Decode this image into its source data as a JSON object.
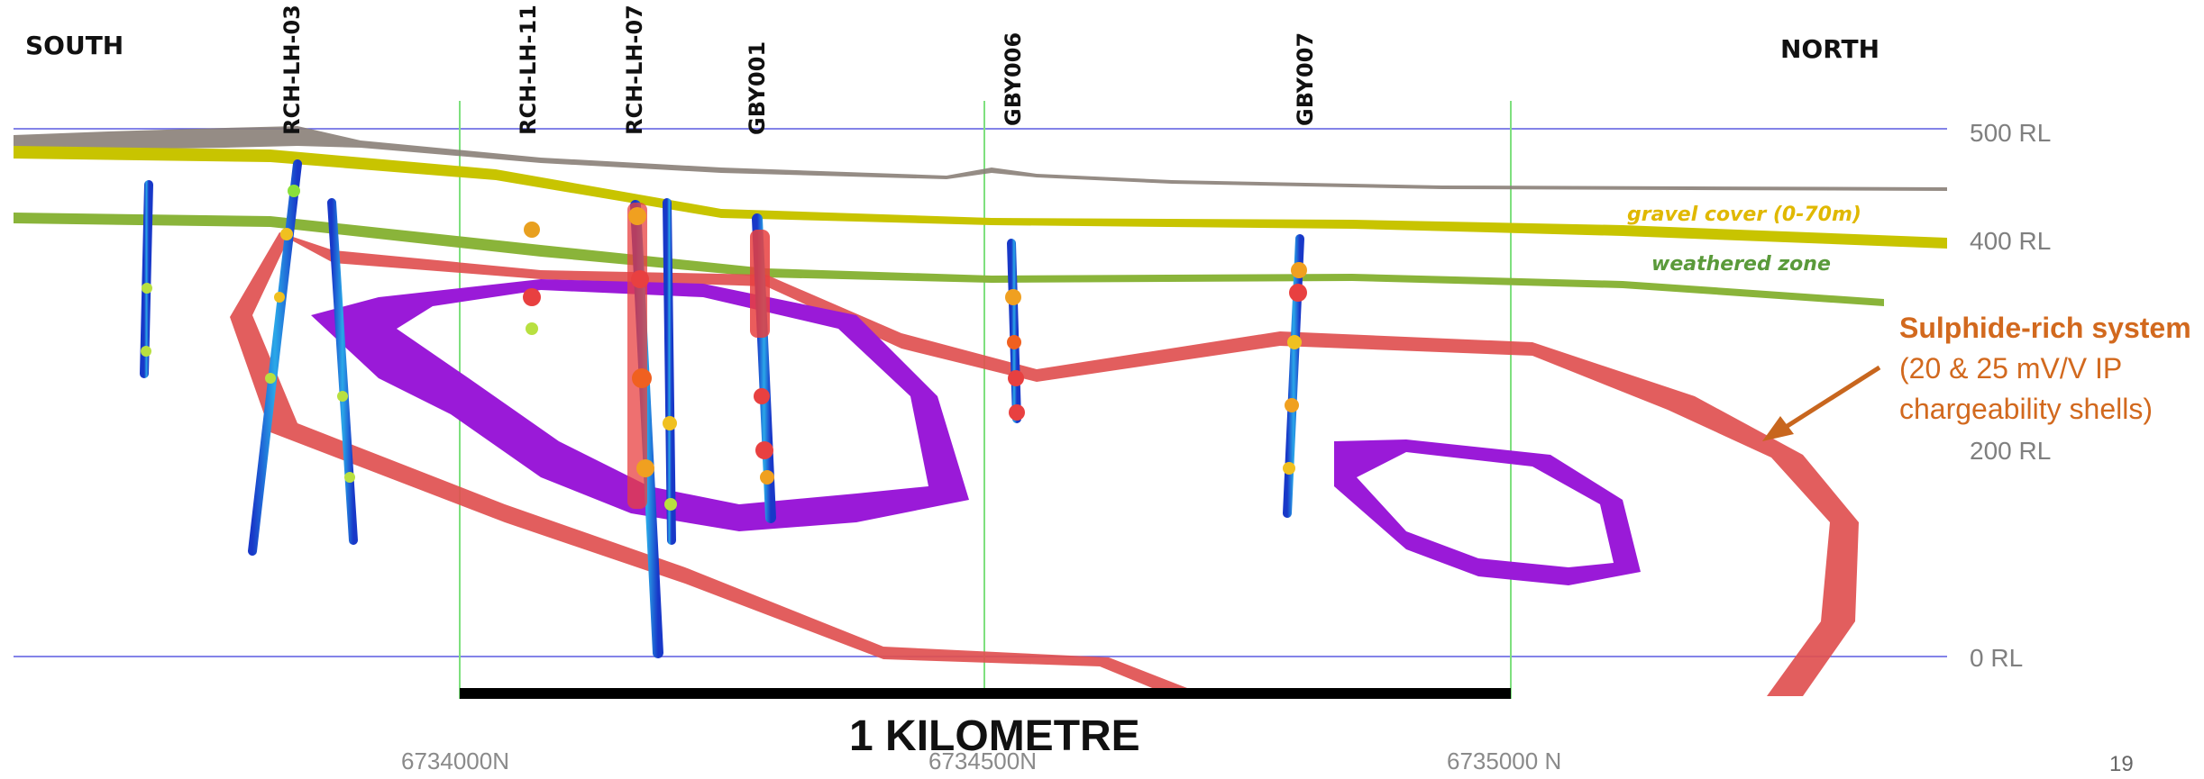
{
  "directions": {
    "south": "SOUTH",
    "north": "NORTH"
  },
  "drillholes": [
    {
      "id": "RCH-LH-03"
    },
    {
      "id": "RCH-LH-11"
    },
    {
      "id": "RCH-LH-07"
    },
    {
      "id": "GBY001"
    },
    {
      "id": "GBY006"
    },
    {
      "id": "GBY007"
    }
  ],
  "rl_labels": [
    "500 RL",
    "400 RL",
    "200 RL",
    "0 RL"
  ],
  "northings": [
    "6734000N",
    "6734500N",
    "6735000 N"
  ],
  "layers": {
    "gravel": {
      "label": "gravel cover (0-70m)",
      "color": "#e0b800"
    },
    "weathered": {
      "label": "weathered zone",
      "color": "#5a9a3a"
    }
  },
  "callout": {
    "title": "Sulphide-rich system",
    "line1": "(20 & 25 mV/V IP",
    "line2": "chargeability shells)",
    "color": "#d2691e"
  },
  "scale_bar": {
    "label": "1 KILOMETRE"
  },
  "page_number": "19",
  "colors": {
    "rl_line": "#5a5ae0",
    "grid_line": "#7ee07e",
    "shell_red": "#e05050",
    "shell_purple": "#9a1ad8",
    "topography": "#8a7f78",
    "gravel_band": "#c8c400",
    "weathered_band": "#8ab43a"
  }
}
